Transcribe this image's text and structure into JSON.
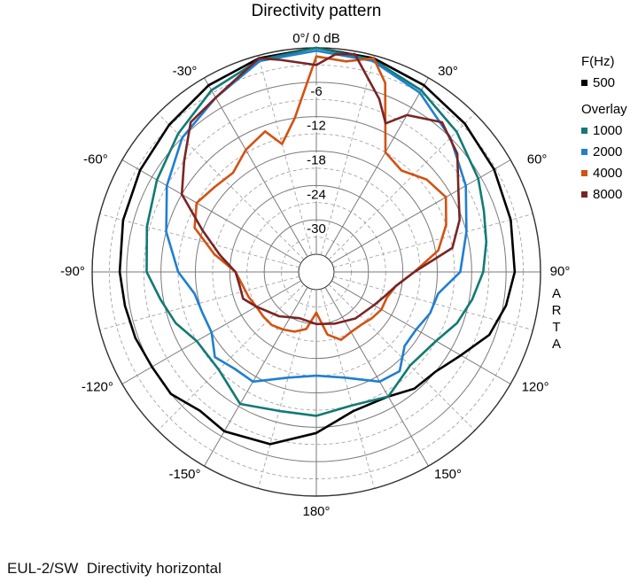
{
  "chart_data": {
    "type": "polar-line",
    "title": "Directivity pattern",
    "watermark": "ARTA",
    "radial_range_db": [
      -36,
      0
    ],
    "radial_ticks": [
      {
        "value": 0,
        "label": "0°/ 0 dB"
      },
      {
        "value": -6,
        "label": "-6"
      },
      {
        "value": -12,
        "label": "-12"
      },
      {
        "value": -18,
        "label": "-18"
      },
      {
        "value": -24,
        "label": "-24"
      },
      {
        "value": -30,
        "label": "-30"
      }
    ],
    "angle_ticks": [
      {
        "angle": -30,
        "label": "-30°"
      },
      {
        "angle": 30,
        "label": "30°"
      },
      {
        "angle": -60,
        "label": "-60°"
      },
      {
        "angle": 60,
        "label": "60°"
      },
      {
        "angle": -90,
        "label": "-90°"
      },
      {
        "angle": 90,
        "label": "90°"
      },
      {
        "angle": -120,
        "label": "-120°"
      },
      {
        "angle": 120,
        "label": "120°"
      },
      {
        "angle": -150,
        "label": "-150°"
      },
      {
        "angle": 150,
        "label": "150°"
      },
      {
        "angle": 180,
        "label": "180°"
      }
    ],
    "legend": {
      "heading": "F(Hz)",
      "overlay_heading": "Overlay",
      "position": "top-right"
    },
    "series": [
      {
        "name": "500",
        "color": "#000000",
        "group": "main",
        "angles": [
          -180,
          -165,
          -150,
          -140,
          -130,
          -120,
          -110,
          -100,
          -90,
          -75,
          -60,
          -45,
          -30,
          -15,
          0,
          15,
          30,
          45,
          60,
          75,
          90,
          100,
          110,
          120,
          130,
          140,
          150,
          165
        ],
        "values": [
          -11,
          -8,
          -7,
          -7.5,
          -6,
          -6,
          -5.5,
          -5.2,
          -4.8,
          -4.2,
          -3.6,
          -2.8,
          -1.5,
          -0.5,
          0,
          -0.5,
          -1.5,
          -2.5,
          -3.3,
          -4,
          -4.5,
          -5.5,
          -7,
          -10,
          -12,
          -12.5,
          -14,
          -14
        ]
      },
      {
        "name": "1000",
        "color": "#127a75",
        "group": "overlay",
        "angles": [
          -180,
          -165,
          -150,
          -135,
          -120,
          -110,
          -100,
          -90,
          -75,
          -60,
          -45,
          -30,
          -15,
          0,
          15,
          30,
          45,
          60,
          70,
          80,
          90,
          100,
          110,
          120,
          135,
          150,
          165
        ],
        "values": [
          -14,
          -14,
          -12.5,
          -15,
          -15,
          -13,
          -11.5,
          -9.5,
          -8.5,
          -7,
          -5,
          -2.5,
          -0.8,
          0,
          -0.8,
          -2.5,
          -4.5,
          -6.5,
          -8,
          -9,
          -10,
          -11.5,
          -13,
          -15,
          -16,
          -14,
          -15
        ]
      },
      {
        "name": "2000",
        "color": "#1f7fd0",
        "group": "overlay",
        "angles": [
          -180,
          -165,
          -150,
          -140,
          -130,
          -120,
          -110,
          -100,
          -90,
          -75,
          -60,
          -45,
          -30,
          -15,
          0,
          15,
          30,
          45,
          60,
          75,
          90,
          100,
          110,
          120,
          130,
          140,
          150,
          165
        ],
        "values": [
          -21,
          -20,
          -17,
          -17,
          -16,
          -18,
          -18,
          -17.5,
          -15,
          -12,
          -9,
          -6,
          -4,
          -1,
          -0.5,
          -1,
          -3,
          -6,
          -9,
          -12,
          -14,
          -17.5,
          -18,
          -19,
          -19,
          -16.5,
          -17,
          -20
        ]
      },
      {
        "name": "4000",
        "color": "#d35212",
        "group": "overlay",
        "angles": [
          -180,
          -170,
          -160,
          -150,
          -140,
          -130,
          -120,
          -110,
          -100,
          -90,
          -80,
          -70,
          -60,
          -50,
          -40,
          -30,
          -20,
          -15,
          -8,
          0,
          8,
          15,
          20,
          30,
          40,
          50,
          60,
          70,
          80,
          90,
          100,
          110,
          120,
          130,
          140,
          150,
          160,
          170
        ],
        "values": [
          -32,
          -29,
          -28,
          -27.5,
          -27,
          -27,
          -27,
          -26.5,
          -26,
          -25,
          -21,
          -16.5,
          -15,
          -16,
          -16.5,
          -14.5,
          -13,
          -16,
          -12,
          -1.5,
          -2,
          -0.5,
          -4,
          -15,
          -16,
          -14,
          -13,
          -15,
          -17.5,
          -22,
          -25,
          -26,
          -26,
          -26.5,
          -27,
          -27,
          -26.5,
          -28
        ]
      },
      {
        "name": "8000",
        "color": "#7a2424",
        "group": "overlay",
        "angles": [
          -180,
          -160,
          -140,
          -120,
          -110,
          -100,
          -90,
          -80,
          -70,
          -60,
          -50,
          -40,
          -30,
          -20,
          -15,
          -10,
          0,
          5,
          10,
          20,
          25,
          30,
          40,
          50,
          60,
          70,
          80,
          90,
          100,
          110,
          120,
          140,
          160
        ],
        "values": [
          -30,
          -30.5,
          -29,
          -27,
          -25.5,
          -25.5,
          -25,
          -22,
          -18,
          -12,
          -9,
          -5,
          -4,
          -2,
          -0.5,
          -1.5,
          -3,
          -1,
          -0.5,
          -7,
          -10.5,
          -7.5,
          -5,
          -7,
          -10.5,
          -12.5,
          -15,
          -22,
          -25,
          -26.5,
          -27.5,
          -28.5,
          -29.5
        ]
      }
    ]
  },
  "caption": "EUL-2/SW  Directivity horizontal"
}
